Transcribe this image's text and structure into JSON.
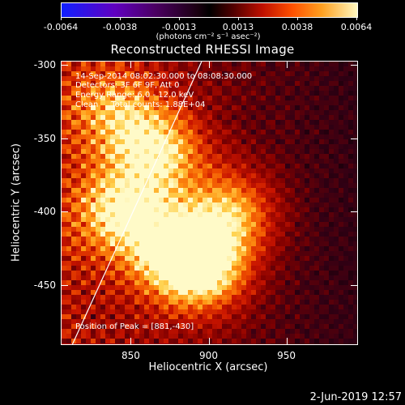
{
  "colorbar": {
    "tick_labels": [
      "-0.0064",
      "-0.0038",
      "-0.0013",
      "0.0013",
      "0.0038",
      "0.0064"
    ],
    "units": "(photons cm⁻² s⁻¹ asec⁻²)"
  },
  "title": "Reconstructed RHESSI Image",
  "annotations": {
    "time_range": "14-Sep-2014 08:02:30.000 to 08:08:30.000",
    "detectors": "Detectors: 3F 6F 9F, Att 0",
    "energy": "Energy Range: 6.0 - 12.0 keV",
    "clean": "Clean     Total counts: 1.88E+04",
    "peak": "Position of Peak = [881,-430]"
  },
  "axes": {
    "xlabel": "Heliocentric X (arcsec)",
    "ylabel": "Heliocentric Y (arcsec)",
    "xticks": [
      "850",
      "900",
      "950"
    ],
    "yticks": [
      "-300",
      "-350",
      "-400",
      "-450"
    ]
  },
  "datestamp": "2-Jun-2019 12:57",
  "colors": {
    "background": "#000000",
    "foreground": "#ffffff",
    "limb_line": "#ffffff"
  },
  "chart_data": {
    "type": "heatmap",
    "title": "Reconstructed RHESSI Image",
    "xlabel": "Heliocentric X (arcsec)",
    "ylabel": "Heliocentric Y (arcsec)",
    "xlim": [
      805,
      995
    ],
    "ylim": [
      -490,
      -297
    ],
    "xticks": [
      850,
      900,
      950
    ],
    "yticks": [
      -300,
      -350,
      -400,
      -450
    ],
    "color_range": [
      -0.0064,
      0.0064
    ],
    "colorbar_ticks": [
      -0.0064,
      -0.0038,
      -0.0013,
      0.0013,
      0.0038,
      0.0064
    ],
    "peak_position": [
      881,
      -430
    ],
    "sources": [
      {
        "x": 845,
        "y": -400,
        "level": 0.9
      },
      {
        "x": 868,
        "y": -358,
        "level": 0.85
      },
      {
        "x": 881,
        "y": -430,
        "level": 1.0
      },
      {
        "x": 915,
        "y": -400,
        "level": 0.85
      },
      {
        "x": 840,
        "y": -330,
        "level": 0.6
      },
      {
        "x": 900,
        "y": -440,
        "level": 0.75
      }
    ],
    "limb_line": [
      [
        812,
        -490
      ],
      [
        895,
        -297
      ]
    ]
  }
}
